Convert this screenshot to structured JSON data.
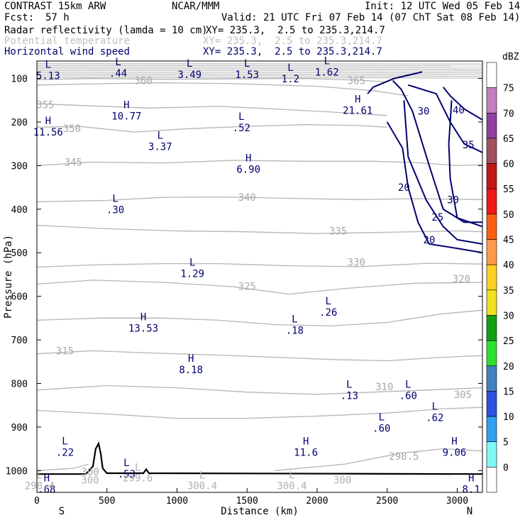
{
  "header": {
    "model": "CONTRAST 15km ARW",
    "center": "NCAR/MMM",
    "init": "Init: 12 UTC Wed 05 Feb 14",
    "fcst_label": "Fcst:",
    "fcst_value": "57 h",
    "valid": "Valid: 21 UTC Fri 07 Feb 14 (07 ChT Sat 08 Feb 14)",
    "fields": [
      {
        "name": "Radar reflectivity (lamda = 10 cm)",
        "xy": "XY= 235.3,  2.5 to 235.3,214.7",
        "color": "#000000"
      },
      {
        "name": "Potential temperature",
        "xy": "XY= 235.3,  2.5 to 235.3,214.7",
        "color": "#c0c0c0"
      },
      {
        "name": "Horizontal wind speed",
        "xy": "XY= 235.3,  2.5 to 235.3,214.7",
        "color": "#00006e"
      }
    ]
  },
  "chart_data": {
    "type": "cross-section contour",
    "xlabel": "Distance (km)",
    "ylabel": "Pressure (hPa)",
    "xlim": [
      0,
      3180
    ],
    "ylim": [
      1050,
      60
    ],
    "x_ticks": [
      0,
      500,
      1000,
      1500,
      2000,
      2500,
      3000
    ],
    "y_ticks": [
      100,
      200,
      300,
      400,
      500,
      600,
      700,
      800,
      900,
      1000
    ],
    "x_end_labels": {
      "left": "S",
      "right": "N"
    },
    "terrain": [
      [
        0,
        1008
      ],
      [
        350,
        1008
      ],
      [
        400,
        990
      ],
      [
        420,
        950
      ],
      [
        440,
        938
      ],
      [
        455,
        960
      ],
      [
        470,
        995
      ],
      [
        500,
        1006
      ],
      [
        760,
        1006
      ],
      [
        780,
        997
      ],
      [
        800,
        1006
      ],
      [
        3180,
        1008
      ]
    ],
    "theta_contours": [
      {
        "label": "365",
        "lx": 2280,
        "ly": 105,
        "points": [
          [
            0,
            103
          ],
          [
            400,
            100
          ],
          [
            900,
            102
          ],
          [
            1400,
            101
          ],
          [
            1900,
            100
          ],
          [
            2300,
            104
          ],
          [
            2500,
            108
          ]
        ]
      },
      {
        "label": "360",
        "lx": 760,
        "ly": 105,
        "points": [
          [
            0,
            115
          ],
          [
            500,
            112
          ],
          [
            900,
            110
          ],
          [
            1400,
            112
          ],
          [
            2000,
            118
          ],
          [
            2400,
            128
          ],
          [
            2650,
            140
          ]
        ]
      },
      {
        "label": "355",
        "lx": 60,
        "ly": 160,
        "points": [
          [
            0,
            158
          ],
          [
            400,
            163
          ],
          [
            800,
            168
          ],
          [
            1300,
            164
          ],
          [
            1700,
            170
          ],
          [
            2100,
            177
          ],
          [
            2500,
            185
          ]
        ]
      },
      {
        "label": "350",
        "lx": 250,
        "ly": 215,
        "points": [
          [
            0,
            212
          ],
          [
            300,
            210
          ],
          [
            700,
            223
          ],
          [
            1100,
            215
          ],
          [
            1500,
            210
          ],
          [
            1900,
            206
          ],
          [
            2300,
            208
          ],
          [
            2500,
            212
          ]
        ]
      },
      {
        "label": "345",
        "lx": 260,
        "ly": 292,
        "points": [
          [
            0,
            300
          ],
          [
            400,
            292
          ],
          [
            900,
            294
          ],
          [
            1400,
            288
          ],
          [
            1900,
            290
          ],
          [
            2400,
            290
          ],
          [
            2700,
            293
          ],
          [
            3000,
            300
          ],
          [
            3180,
            298
          ]
        ]
      },
      {
        "label": "340",
        "lx": 1500,
        "ly": 373,
        "points": [
          [
            0,
            383
          ],
          [
            500,
            380
          ],
          [
            900,
            373
          ],
          [
            1300,
            372
          ],
          [
            1800,
            375
          ],
          [
            2300,
            378
          ],
          [
            2700,
            376
          ],
          [
            3180,
            378
          ]
        ]
      },
      {
        "label": "335",
        "lx": 2150,
        "ly": 450,
        "points": [
          [
            0,
            437
          ],
          [
            500,
            445
          ],
          [
            1000,
            450
          ],
          [
            1500,
            452
          ],
          [
            2000,
            456
          ],
          [
            2500,
            453
          ],
          [
            3000,
            450
          ],
          [
            3180,
            452
          ]
        ]
      },
      {
        "label": "330",
        "lx": 2280,
        "ly": 522,
        "points": [
          [
            0,
            533
          ],
          [
            400,
            528
          ],
          [
            900,
            525
          ],
          [
            1300,
            525
          ],
          [
            1800,
            530
          ],
          [
            2300,
            532
          ],
          [
            2800,
            524
          ],
          [
            3180,
            526
          ]
        ]
      },
      {
        "label": "325",
        "lx": 1500,
        "ly": 577,
        "points": [
          [
            0,
            572
          ],
          [
            400,
            563
          ],
          [
            900,
            568
          ],
          [
            1400,
            578
          ],
          [
            1800,
            595
          ],
          [
            2200,
            582
          ],
          [
            2700,
            570
          ],
          [
            3180,
            568
          ]
        ]
      },
      {
        "label": "320",
        "lx": 3030,
        "ly": 560,
        "points": [
          [
            0,
            655
          ],
          [
            450,
            650
          ],
          [
            900,
            650
          ],
          [
            1300,
            655
          ],
          [
            1700,
            665
          ],
          [
            2100,
            668
          ],
          [
            2500,
            660
          ],
          [
            2900,
            640
          ],
          [
            3180,
            632
          ]
        ]
      },
      {
        "label": "315",
        "lx": 200,
        "ly": 725,
        "points": [
          [
            0,
            732
          ],
          [
            400,
            725
          ],
          [
            800,
            730
          ],
          [
            1300,
            735
          ],
          [
            1700,
            740
          ],
          [
            2100,
            745
          ],
          [
            2500,
            748
          ],
          [
            2900,
            740
          ],
          [
            3180,
            736
          ]
        ]
      },
      {
        "label": "310",
        "lx": 2480,
        "ly": 807,
        "points": [
          [
            0,
            815
          ],
          [
            500,
            805
          ],
          [
            1000,
            810
          ],
          [
            1500,
            820
          ],
          [
            2000,
            825
          ],
          [
            2400,
            820
          ],
          [
            2800,
            815
          ],
          [
            3180,
            810
          ]
        ]
      },
      {
        "label": "305",
        "lx": 3040,
        "ly": 825,
        "points": [
          [
            0,
            862
          ],
          [
            500,
            870
          ],
          [
            1000,
            880
          ],
          [
            1500,
            880
          ],
          [
            2000,
            875
          ],
          [
            2500,
            868
          ],
          [
            2900,
            858
          ],
          [
            3180,
            855
          ]
        ]
      },
      {
        "label": "300",
        "lx": 380,
        "ly": 1003,
        "points": [
          [
            0,
            1000
          ],
          [
            260,
            995
          ],
          [
            370,
            985
          ]
        ]
      },
      {
        "label": "298.5",
        "lx": 2620,
        "ly": 967,
        "points": [
          [
            1700,
            1000
          ],
          [
            2200,
            985
          ],
          [
            2600,
            960
          ],
          [
            2900,
            950
          ],
          [
            3180,
            955
          ]
        ]
      }
    ],
    "wind_contours": [
      {
        "label": "40",
        "lx": 3010,
        "ly": 172,
        "points": [
          [
            2900,
            120
          ],
          [
            2950,
            140
          ],
          [
            3050,
            170
          ],
          [
            3180,
            195
          ]
        ]
      },
      {
        "label": "35",
        "lx": 3080,
        "ly": 252,
        "points": [
          [
            2650,
            115
          ],
          [
            2850,
            135
          ],
          [
            2950,
            200
          ],
          [
            3050,
            250
          ],
          [
            3180,
            270
          ]
        ]
      },
      {
        "label": "30",
        "lx": 2760,
        "ly": 175,
        "points": [
          [
            2540,
            105
          ],
          [
            2600,
            125
          ],
          [
            2680,
            175
          ],
          [
            2800,
            300
          ],
          [
            2900,
            400
          ],
          [
            3050,
            430
          ],
          [
            3180,
            430
          ]
        ]
      },
      {
        "label": "30",
        "lx": 2970,
        "ly": 378,
        "points": [
          [
            2960,
            150
          ],
          [
            2940,
            250
          ],
          [
            2950,
            330
          ],
          [
            3000,
            420
          ],
          [
            3180,
            440
          ]
        ]
      },
      {
        "label": "25",
        "lx": 2860,
        "ly": 418,
        "points": [
          [
            2620,
            150
          ],
          [
            2650,
            280
          ],
          [
            2780,
            380
          ],
          [
            2900,
            440
          ],
          [
            3000,
            470
          ],
          [
            3180,
            480
          ]
        ]
      },
      {
        "label": "20",
        "lx": 2620,
        "ly": 350,
        "points": [
          [
            2500,
            200
          ],
          [
            2610,
            260
          ],
          [
            2650,
            350
          ],
          [
            2720,
            430
          ],
          [
            2800,
            480
          ],
          [
            3000,
            490
          ],
          [
            3180,
            500
          ]
        ]
      },
      {
        "label": "20",
        "lx": 2800,
        "ly": 470,
        "points": [
          [
            2360,
            135
          ],
          [
            2400,
            120
          ],
          [
            2550,
            100
          ],
          [
            2750,
            85
          ]
        ]
      }
    ],
    "extrema": [
      {
        "type": "L",
        "value": "5.13",
        "x": 80,
        "y": 80
      },
      {
        "type": "L",
        "value": ".44",
        "x": 580,
        "y": 75
      },
      {
        "type": "L",
        "value": "3.49",
        "x": 1090,
        "y": 78
      },
      {
        "type": "L",
        "value": "1.53",
        "x": 1500,
        "y": 78
      },
      {
        "type": "L",
        "value": "1.2",
        "x": 1810,
        "y": 88
      },
      {
        "type": "L",
        "value": "1.62",
        "x": 2070,
        "y": 72
      },
      {
        "type": "H",
        "value": "21.61",
        "x": 2290,
        "y": 160
      },
      {
        "type": "H",
        "value": "10.77",
        "x": 640,
        "y": 173
      },
      {
        "type": "H",
        "value": "11.56",
        "x": 80,
        "y": 210
      },
      {
        "type": "L",
        "value": ".52",
        "x": 1460,
        "y": 200
      },
      {
        "type": "L",
        "value": "3.37",
        "x": 880,
        "y": 243
      },
      {
        "type": "H",
        "value": "6.90",
        "x": 1510,
        "y": 295
      },
      {
        "type": "L",
        "value": ".30",
        "x": 560,
        "y": 388
      },
      {
        "type": "L",
        "value": "1.29",
        "x": 1110,
        "y": 535
      },
      {
        "type": "L",
        "value": ".26",
        "x": 2080,
        "y": 623
      },
      {
        "type": "H",
        "value": "13.53",
        "x": 760,
        "y": 660
      },
      {
        "type": "L",
        "value": ".18",
        "x": 1840,
        "y": 665
      },
      {
        "type": "H",
        "value": "8.18",
        "x": 1100,
        "y": 755
      },
      {
        "type": "L",
        "value": ".13",
        "x": 2230,
        "y": 815
      },
      {
        "type": "L",
        "value": ".60",
        "x": 2650,
        "y": 815
      },
      {
        "type": "L",
        "value": ".60",
        "x": 2460,
        "y": 890
      },
      {
        "type": "L",
        "value": ".62",
        "x": 2840,
        "y": 865
      },
      {
        "type": "L",
        "value": ".22",
        "x": 200,
        "y": 945
      },
      {
        "type": "H",
        "value": "11.6",
        "x": 1920,
        "y": 945
      },
      {
        "type": "H",
        "value": "9.06",
        "x": 2980,
        "y": 945
      },
      {
        "type": "L",
        "value": ".53",
        "x": 640,
        "y": 995
      },
      {
        "type": "H",
        "value": ".68",
        "x": 70,
        "y": 1030
      },
      {
        "type": "H",
        "value": "8.1",
        "x": 3100,
        "y": 1030
      }
    ],
    "terrain_labels": [
      {
        "text": "L\n298.4",
        "x": 20,
        "y": 1018
      },
      {
        "text": "300",
        "x": 380,
        "y": 1030
      },
      {
        "text": "L\n299.6",
        "x": 720,
        "y": 1000
      },
      {
        "text": "L\n300.4",
        "x": 1180,
        "y": 1018
      },
      {
        "text": "L\n300.4",
        "x": 1820,
        "y": 1018
      },
      {
        "text": "300",
        "x": 2180,
        "y": 1030
      }
    ],
    "colorbar": {
      "unit": "dBZ",
      "levels": [
        "75",
        "70",
        "65",
        "60",
        "55",
        "50",
        "45",
        "40",
        "35",
        "30",
        "25",
        "20",
        "15",
        "10",
        "5",
        "0"
      ],
      "colors": [
        "#ffffff",
        "#c080c0",
        "#9040a0",
        "#a05060",
        "#c01818",
        "#f01818",
        "#ff6010",
        "#ff9a4a",
        "#ffd020",
        "#f0e020",
        "#10a010",
        "#30e030",
        "#4080c0",
        "#3050e0",
        "#30a0f0",
        "#80f8f8",
        "#ffffff"
      ]
    }
  }
}
